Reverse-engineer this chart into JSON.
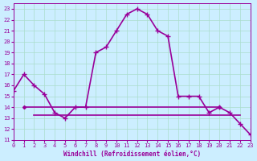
{
  "xlabel": "Windchill (Refroidissement éolien,°C)",
  "bg_color": "#cceeff",
  "grid_color": "#aaddcc",
  "line_color": "#990099",
  "hours": [
    0,
    1,
    2,
    3,
    4,
    5,
    6,
    7,
    8,
    9,
    10,
    11,
    12,
    13,
    14,
    15,
    16,
    17,
    18,
    19,
    20,
    21,
    22,
    23
  ],
  "windchill": [
    15.5,
    17.0,
    16.0,
    15.2,
    13.5,
    13.0,
    14.0,
    14.0,
    19.0,
    19.5,
    21.0,
    22.5,
    23.0,
    22.5,
    21.0,
    20.5,
    15.0,
    15.0,
    15.0,
    13.5,
    14.0,
    13.5,
    12.5,
    11.5
  ],
  "hline1_y": 14.0,
  "hline2_y": 13.3,
  "hline1_xstart": 1,
  "hline1_xend": 20,
  "hline2_xstart": 2,
  "hline2_xend": 22,
  "ylim": [
    11,
    23.5
  ],
  "xlim": [
    0,
    23
  ],
  "yticks": [
    11,
    12,
    13,
    14,
    15,
    16,
    17,
    18,
    19,
    20,
    21,
    22,
    23
  ],
  "xticks": [
    0,
    1,
    2,
    3,
    4,
    5,
    6,
    7,
    8,
    9,
    10,
    11,
    12,
    13,
    14,
    15,
    16,
    17,
    18,
    19,
    20,
    21,
    22,
    23
  ]
}
